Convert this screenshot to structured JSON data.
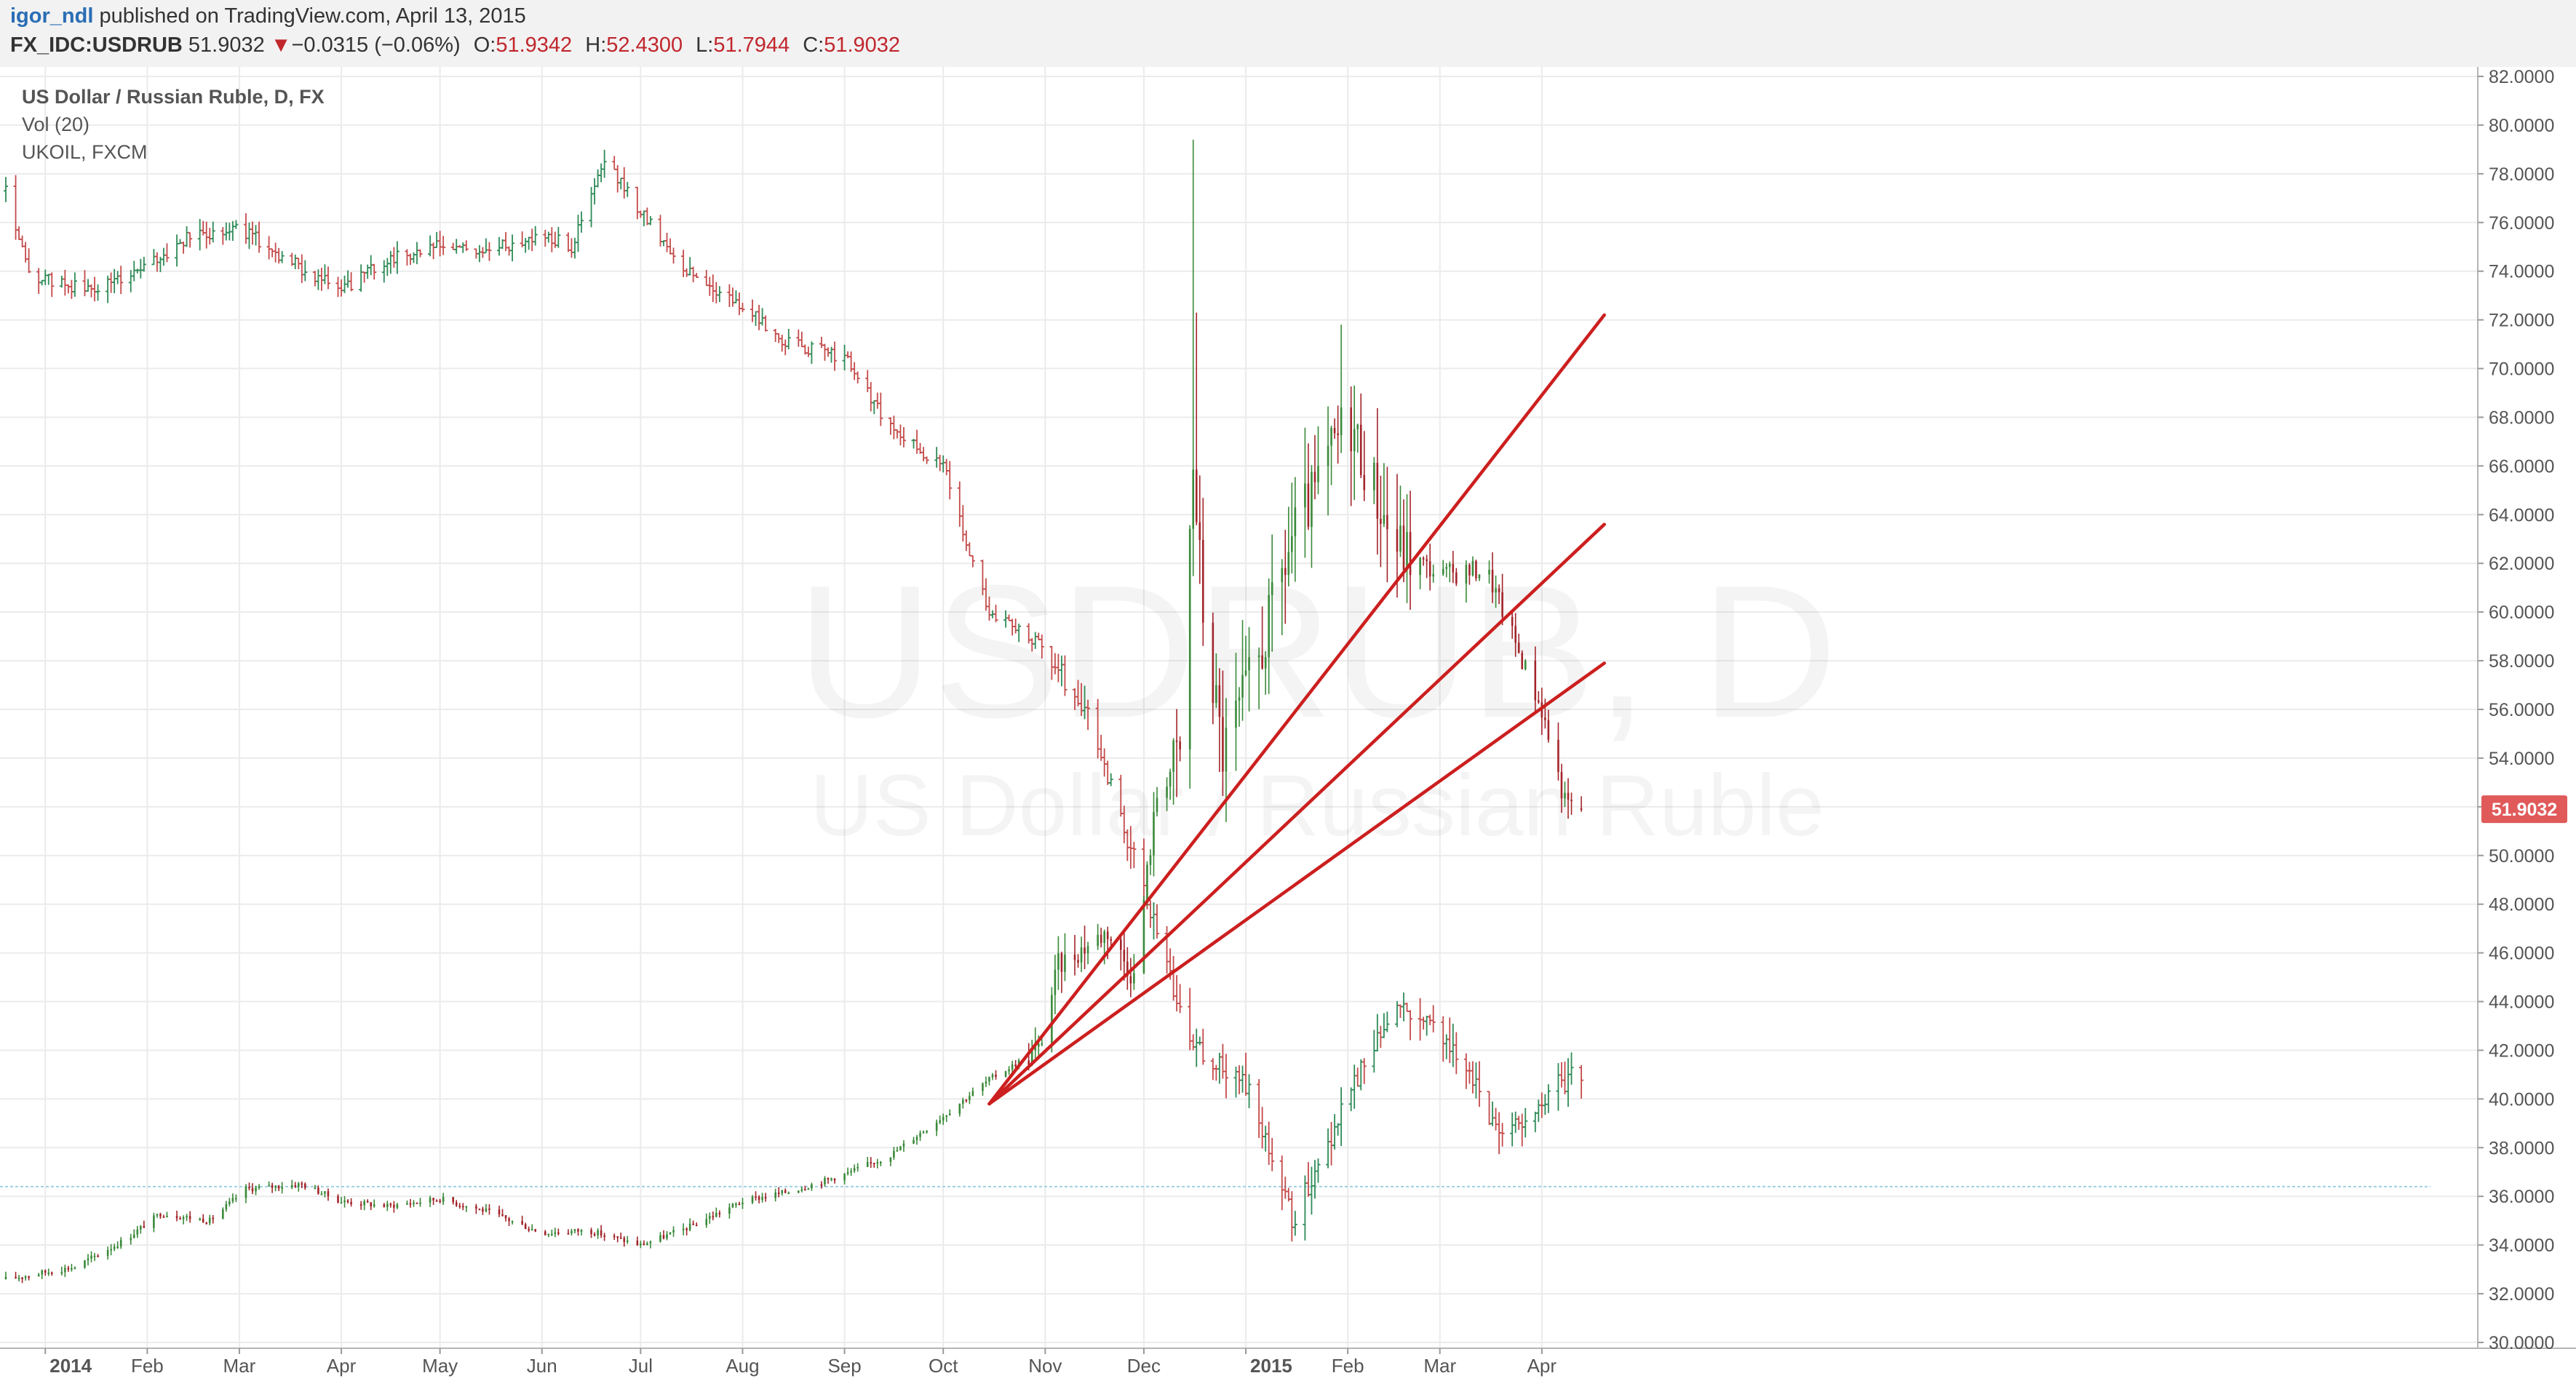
{
  "header": {
    "author": "igor_ndl",
    "published_text": "published on TradingView.com, April 13, 2015",
    "symbol": "FX_IDC:USDRUB",
    "last": "51.9032",
    "change_arrow": "▼",
    "change": "−0.0315 (−0.06%)",
    "open_label": "O:",
    "open": "51.9342",
    "high_label": "H:",
    "high": "52.4300",
    "low_label": "L:",
    "low": "51.7944",
    "close_label": "C:",
    "close": "51.9032"
  },
  "legend": {
    "main": "US Dollar / Russian Ruble, D, FX",
    "vol": "Vol (20)",
    "overlay": "UKOIL, FXCM"
  },
  "watermark": {
    "line1": "USDRUB, D",
    "line2": "US Dollar / Russian Ruble"
  },
  "colors": {
    "up": "#3a8a3a",
    "down": "#a3252b",
    "overlay_up": "#2e8b57",
    "overlay_down": "#c44a4a",
    "trendline": "#cc1f1f",
    "price_label_bg": "#e05a5a",
    "hline": "#9ed0e0"
  },
  "chart_data": {
    "type": "candlestick",
    "date_range": [
      "2013-12-20",
      "2015-04-13"
    ],
    "ylim": [
      30,
      82
    ],
    "y_ticks": [
      "30.0000",
      "32.0000",
      "34.0000",
      "36.0000",
      "38.0000",
      "40.0000",
      "42.0000",
      "44.0000",
      "46.0000",
      "48.0000",
      "50.0000",
      "52.0000",
      "54.0000",
      "56.0000",
      "58.0000",
      "60.0000",
      "62.0000",
      "64.0000",
      "66.0000",
      "68.0000",
      "70.0000",
      "72.0000",
      "74.0000",
      "76.0000",
      "78.0000",
      "80.0000",
      "82.0000"
    ],
    "x_ticks": [
      {
        "date": "2014-01-01",
        "label": "2014",
        "bold": true
      },
      {
        "date": "2014-02-01",
        "label": "Feb"
      },
      {
        "date": "2014-03-01",
        "label": "Mar"
      },
      {
        "date": "2014-04-01",
        "label": "Apr"
      },
      {
        "date": "2014-05-01",
        "label": "May"
      },
      {
        "date": "2014-06-01",
        "label": "Jun"
      },
      {
        "date": "2014-07-01",
        "label": "Jul"
      },
      {
        "date": "2014-08-01",
        "label": "Aug"
      },
      {
        "date": "2014-09-01",
        "label": "Sep"
      },
      {
        "date": "2014-10-01",
        "label": "Oct"
      },
      {
        "date": "2014-11-01",
        "label": "Nov"
      },
      {
        "date": "2014-12-01",
        "label": "Dec"
      },
      {
        "date": "2015-01-01",
        "label": "2015",
        "bold": true
      },
      {
        "date": "2015-02-01",
        "label": "Feb"
      },
      {
        "date": "2015-03-01",
        "label": "Mar"
      },
      {
        "date": "2015-04-01",
        "label": "Apr"
      }
    ],
    "last_price": {
      "value": 51.9032,
      "label": "51.9032"
    },
    "horizontal_line": 36.4,
    "usdrub_anchors": [
      [
        "2013-12-20",
        32.6
      ],
      [
        "2014-01-10",
        33.1
      ],
      [
        "2014-01-25",
        34.2
      ],
      [
        "2014-02-05",
        35.3
      ],
      [
        "2014-02-20",
        35.0
      ],
      [
        "2014-03-03",
        36.3
      ],
      [
        "2014-03-20",
        36.5
      ],
      [
        "2014-04-01",
        35.8
      ],
      [
        "2014-04-15",
        35.6
      ],
      [
        "2014-05-01",
        35.9
      ],
      [
        "2014-05-15",
        35.4
      ],
      [
        "2014-06-01",
        34.5
      ],
      [
        "2014-06-15",
        34.6
      ],
      [
        "2014-07-01",
        34.0
      ],
      [
        "2014-07-15",
        34.7
      ],
      [
        "2014-08-01",
        35.8
      ],
      [
        "2014-08-15",
        36.2
      ],
      [
        "2014-09-01",
        36.9
      ],
      [
        "2014-09-15",
        37.7
      ],
      [
        "2014-10-01",
        39.3
      ],
      [
        "2014-10-15",
        40.8
      ],
      [
        "2014-10-30",
        42.0
      ],
      [
        "2014-11-05",
        45.5
      ],
      [
        "2014-11-20",
        46.9
      ],
      [
        "2014-11-28",
        45.0
      ],
      [
        "2014-12-05",
        52.5
      ],
      [
        "2014-12-12",
        54.2
      ],
      [
        "2014-12-16",
        66.0
      ],
      [
        "2014-12-19",
        60.0
      ],
      [
        "2014-12-25",
        54.2
      ],
      [
        "2015-01-05",
        58.0
      ],
      [
        "2015-01-15",
        63.0
      ],
      [
        "2015-01-22",
        64.8
      ],
      [
        "2015-02-01",
        68.2
      ],
      [
        "2015-02-15",
        62.8
      ],
      [
        "2015-03-01",
        61.5
      ],
      [
        "2015-03-15",
        61.8
      ],
      [
        "2015-04-01",
        56.0
      ],
      [
        "2015-04-08",
        52.2
      ],
      [
        "2015-04-13",
        51.9
      ]
    ],
    "ukoil_anchors": [
      [
        "2013-12-20",
        77.3
      ],
      [
        "2013-12-27",
        73.8
      ],
      [
        "2014-01-15",
        73.2
      ],
      [
        "2014-02-01",
        74.2
      ],
      [
        "2014-02-15",
        75.5
      ],
      [
        "2014-03-01",
        75.8
      ],
      [
        "2014-03-15",
        74.5
      ],
      [
        "2014-04-01",
        73.2
      ],
      [
        "2014-04-15",
        74.5
      ],
      [
        "2014-05-01",
        75.0
      ],
      [
        "2014-05-15",
        74.8
      ],
      [
        "2014-06-01",
        75.5
      ],
      [
        "2014-06-10",
        75.0
      ],
      [
        "2014-06-20",
        78.5
      ],
      [
        "2014-07-01",
        76.5
      ],
      [
        "2014-07-15",
        74.0
      ],
      [
        "2014-08-01",
        72.5
      ],
      [
        "2014-08-15",
        71.0
      ],
      [
        "2014-09-01",
        70.5
      ],
      [
        "2014-09-15",
        67.5
      ],
      [
        "2014-10-01",
        66.0
      ],
      [
        "2014-10-15",
        60.0
      ],
      [
        "2014-11-01",
        58.5
      ],
      [
        "2014-11-15",
        55.5
      ],
      [
        "2014-12-01",
        48.5
      ],
      [
        "2014-12-15",
        42.5
      ],
      [
        "2015-01-01",
        40.5
      ],
      [
        "2015-01-15",
        35.0
      ],
      [
        "2015-02-01",
        40.0
      ],
      [
        "2015-02-15",
        44.0
      ],
      [
        "2015-03-01",
        43.0
      ],
      [
        "2015-03-20",
        38.5
      ],
      [
        "2015-04-01",
        40.0
      ],
      [
        "2015-04-13",
        41.2
      ]
    ],
    "spikes": [
      {
        "date": "2014-12-16",
        "high": 79.4
      },
      {
        "date": "2014-12-17",
        "high": 72.3
      },
      {
        "date": "2015-01-30",
        "high": 71.8
      }
    ],
    "trendlines": [
      {
        "from": [
          "2014-10-15",
          39.8
        ],
        "to": [
          "2015-04-20",
          72.2
        ]
      },
      {
        "from": [
          "2014-10-15",
          39.8
        ],
        "to": [
          "2015-04-20",
          63.6
        ]
      },
      {
        "from": [
          "2014-10-15",
          39.8
        ],
        "to": [
          "2015-04-20",
          57.9
        ]
      }
    ]
  }
}
